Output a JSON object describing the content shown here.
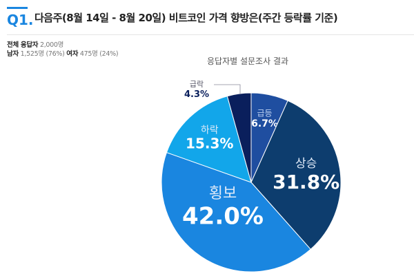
{
  "header": {
    "q_label": "Q1.",
    "title": "다음주(8월 14일 - 8월 20일)  비트코인 가격 향방은(주간 등락률 기준)"
  },
  "info": {
    "total_label": "전체 응답자",
    "total_value": "2,000명",
    "male_label": "남자",
    "male_value": "1,525명 (76%)",
    "female_label": "여자",
    "female_value": "475명 (24%)"
  },
  "chart_data": {
    "type": "pie",
    "title": "응답자별 설문조사 결과",
    "categories": [
      "급등",
      "상승",
      "횡보",
      "하락",
      "급락"
    ],
    "values": [
      6.7,
      31.8,
      42.0,
      15.3,
      4.3
    ],
    "labels": [
      "6.7%",
      "31.8%",
      "42.0%",
      "15.3%",
      "4.3%"
    ],
    "colors": [
      "#1f4ea0",
      "#0d3d6e",
      "#1a86e0",
      "#12a6ea",
      "#0a1f5c"
    ]
  }
}
